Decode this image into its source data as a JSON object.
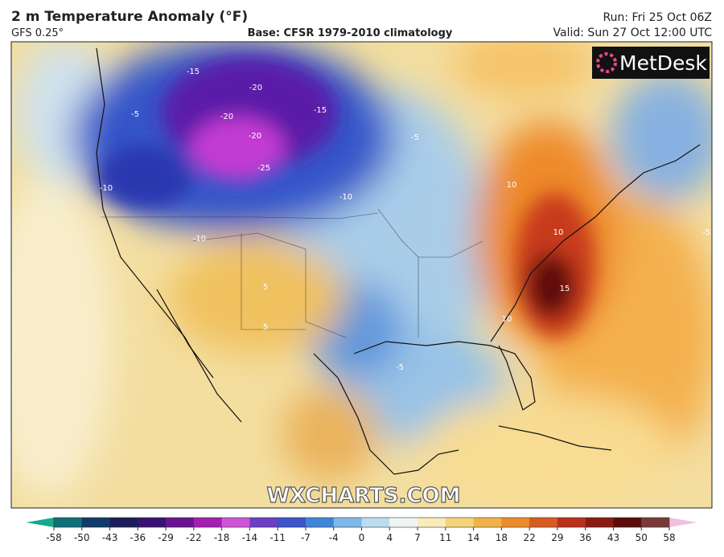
{
  "header": {
    "title": "2 m Temperature Anomaly (°F)",
    "model": "GFS 0.25°",
    "base": "Base: CFSR 1979-2010 climatology",
    "run": "Run: Fri 25 Oct 06Z",
    "valid": "Valid: Sun 27 Oct 12:00 UTC"
  },
  "logo": "MetDesk",
  "watermark": "WXCHARTS.COM",
  "contour_labels": [
    "-15",
    "-20",
    "-15",
    "-20",
    "-20",
    "-25",
    "-10",
    "-10",
    "-10",
    "-5",
    "-5",
    "10",
    "10",
    "15",
    "10",
    "5",
    "5",
    "-5",
    "-5"
  ],
  "colorbar": {
    "ticks": [
      -58,
      -50,
      -43,
      -36,
      -29,
      -22,
      -18,
      -14,
      -11,
      -7,
      -4,
      0,
      4,
      7,
      11,
      14,
      18,
      22,
      29,
      36,
      43,
      50,
      58
    ],
    "colors": [
      "#14a98c",
      "#0f6f78",
      "#123a6a",
      "#1a1f5a",
      "#3a1270",
      "#6a1590",
      "#a41fb2",
      "#cf55d6",
      "#6c3fc4",
      "#3c53c9",
      "#3f86d9",
      "#7fb7e8",
      "#bcdcf2",
      "#f0f4f4",
      "#f8ecba",
      "#f5d37a",
      "#f1b24a",
      "#ec8a2c",
      "#d85b21",
      "#b9311b",
      "#8a1b12",
      "#5a0e0c",
      "#7a3a3a",
      "#d58aa6",
      "#f2bfe0"
    ]
  }
}
